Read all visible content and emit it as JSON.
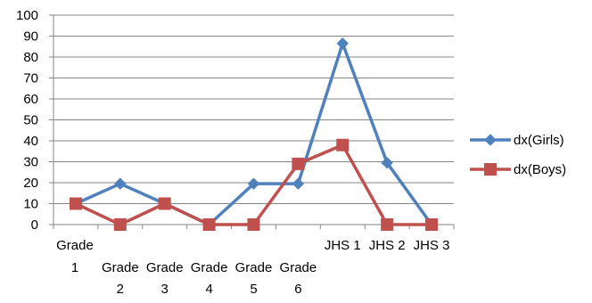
{
  "chart_data": {
    "type": "line",
    "title": "",
    "xlabel": "",
    "ylabel": "",
    "ylim": [
      0,
      100
    ],
    "yticks": [
      0,
      10,
      20,
      30,
      40,
      50,
      60,
      70,
      80,
      90,
      100
    ],
    "grid": true,
    "legend_position": "right",
    "categories": [
      [
        "Grade",
        "1"
      ],
      [
        "Grade",
        "2"
      ],
      [
        "Grade",
        "3"
      ],
      [
        "Grade",
        "4"
      ],
      [
        "Grade",
        "5"
      ],
      [
        "Grade",
        "6"
      ],
      [
        "JHS 1"
      ],
      [
        "JHS 2"
      ],
      [
        "JHS 3"
      ]
    ],
    "series": [
      {
        "name": "dx(Girls)",
        "color": "#4f81bd",
        "marker": "diamond",
        "values": [
          10,
          19.5,
          10,
          0,
          19.5,
          19.5,
          86.5,
          29.5,
          0
        ]
      },
      {
        "name": "dx(Boys)",
        "color": "#c0504d",
        "marker": "square",
        "values": [
          10,
          0,
          10,
          0,
          0,
          29,
          38,
          0,
          0
        ]
      }
    ]
  }
}
